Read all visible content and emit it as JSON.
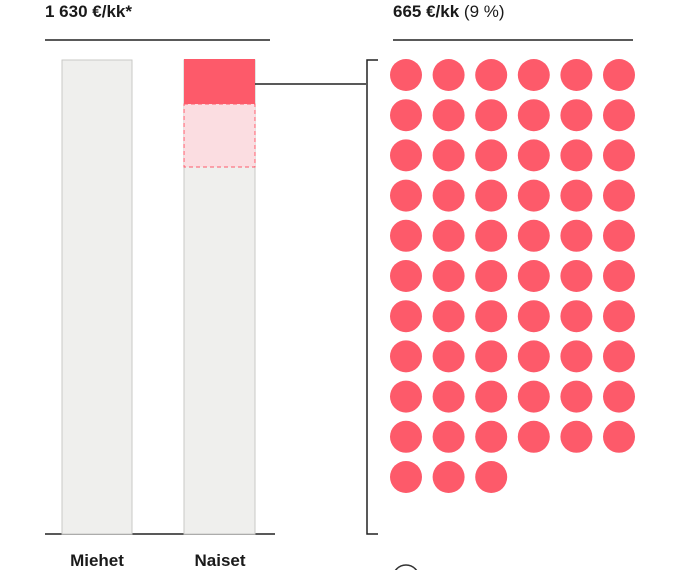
{
  "chart_data": {
    "type": "bar",
    "categories": [
      "Miehet",
      "Naiset"
    ],
    "value_labels": {
      "left": "1 630 €/kk*",
      "right_amount": "665 €/kk",
      "right_percent": "(9 %)"
    },
    "dot_count": 63,
    "dot_columns": 6,
    "colors": {
      "bar_fill": "#efefed",
      "bar_stroke": "#c9c9c6",
      "gap_solid": "#fd5a6a",
      "gap_light": "#fbdde1",
      "dot": "#fd5a6a",
      "rule": "#222222"
    }
  }
}
